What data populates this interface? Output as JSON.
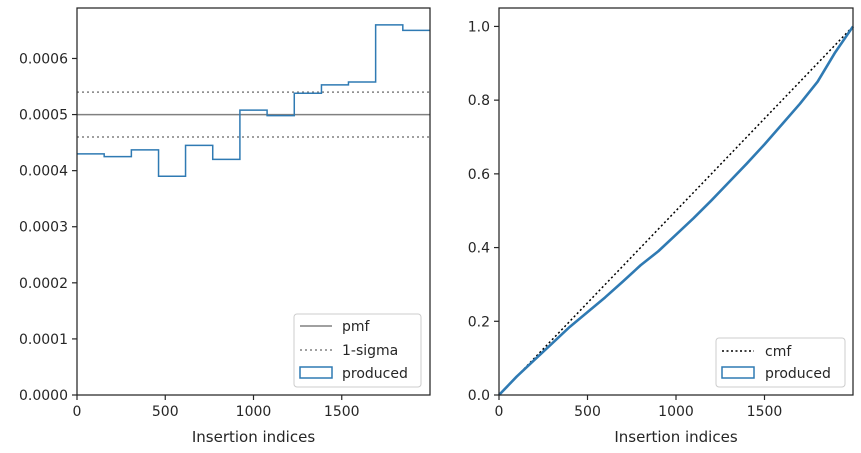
{
  "chart_data": [
    {
      "type": "step",
      "xlabel": "Insertion indices",
      "ylabel": "",
      "xlim": [
        0,
        2000
      ],
      "ylim": [
        0,
        0.00069
      ],
      "xticks": [
        0,
        500,
        1000,
        1500
      ],
      "yticks": [
        "0.0000",
        "0.0001",
        "0.0002",
        "0.0003",
        "0.0004",
        "0.0005",
        "0.0006"
      ],
      "pmf": 0.0005,
      "sigma_band": [
        0.00046,
        0.00054
      ],
      "bin_edges": [
        0,
        154,
        308,
        462,
        615,
        769,
        923,
        1077,
        1231,
        1385,
        1538,
        1692,
        1846,
        2000
      ],
      "series": [
        {
          "name": "produced",
          "values": [
            0.00043,
            0.000425,
            0.000437,
            0.00039,
            0.000445,
            0.00042,
            0.000508,
            0.000498,
            0.000538,
            0.000553,
            0.000558,
            0.00066,
            0.00065
          ]
        }
      ],
      "legend": {
        "placement": "lower-right",
        "entries": [
          "pmf",
          "1-sigma",
          "produced"
        ]
      },
      "colors": {
        "produced": "#2f7ab3",
        "pmf": "#808080",
        "sigma": "#808080"
      }
    },
    {
      "type": "line",
      "xlabel": "Insertion indices",
      "ylabel": "",
      "xlim": [
        0,
        2000
      ],
      "ylim": [
        0,
        1.05
      ],
      "xticks": [
        0,
        500,
        1000,
        1500
      ],
      "yticks": [
        "0.0",
        "0.2",
        "0.4",
        "0.6",
        "0.8",
        "1.0"
      ],
      "series": [
        {
          "name": "cmf",
          "x": [
            0,
            2000
          ],
          "y": [
            0,
            1.0
          ]
        },
        {
          "name": "produced",
          "x": [
            0,
            100,
            200,
            300,
            400,
            500,
            600,
            700,
            800,
            900,
            1000,
            1100,
            1200,
            1300,
            1400,
            1500,
            1600,
            1700,
            1800,
            1900,
            2000
          ],
          "y": [
            0,
            0.05,
            0.095,
            0.14,
            0.185,
            0.225,
            0.265,
            0.308,
            0.352,
            0.39,
            0.435,
            0.48,
            0.528,
            0.578,
            0.628,
            0.68,
            0.735,
            0.79,
            0.85,
            0.93,
            1.0
          ]
        }
      ],
      "legend": {
        "placement": "lower-right",
        "entries": [
          "cmf",
          "produced"
        ]
      },
      "colors": {
        "produced": "#2f7ab3",
        "cmf": "#000000"
      }
    }
  ]
}
